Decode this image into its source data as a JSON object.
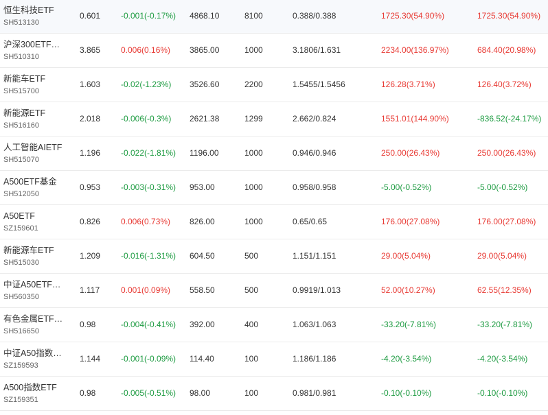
{
  "colors": {
    "up": "#e83a34",
    "down": "#1d9b41",
    "text": "#333333",
    "code": "#666666"
  },
  "rows": [
    {
      "name": "恒生科技ETF",
      "code": "SH513130",
      "price": "0.601",
      "change": "-0.001(-0.17%)",
      "change_dir": "down",
      "market_value": "4868.10",
      "quantity": "8100",
      "cost": "0.388/0.388",
      "pnl": "1725.30(54.90%)",
      "pnl_dir": "up",
      "pnl2": "1725.30(54.90%)",
      "pnl2_dir": "up"
    },
    {
      "name": "沪深300ETF…",
      "code": "SH510310",
      "price": "3.865",
      "change": "0.006(0.16%)",
      "change_dir": "up",
      "market_value": "3865.00",
      "quantity": "1000",
      "cost": "3.1806/1.631",
      "pnl": "2234.00(136.97%)",
      "pnl_dir": "up",
      "pnl2": "684.40(20.98%)",
      "pnl2_dir": "up"
    },
    {
      "name": "新能车ETF",
      "code": "SH515700",
      "price": "1.603",
      "change": "-0.02(-1.23%)",
      "change_dir": "down",
      "market_value": "3526.60",
      "quantity": "2200",
      "cost": "1.5455/1.5456",
      "pnl": "126.28(3.71%)",
      "pnl_dir": "up",
      "pnl2": "126.40(3.72%)",
      "pnl2_dir": "up"
    },
    {
      "name": "新能源ETF",
      "code": "SH516160",
      "price": "2.018",
      "change": "-0.006(-0.3%)",
      "change_dir": "down",
      "market_value": "2621.38",
      "quantity": "1299",
      "cost": "2.662/0.824",
      "pnl": "1551.01(144.90%)",
      "pnl_dir": "up",
      "pnl2": "-836.52(-24.17%)",
      "pnl2_dir": "down"
    },
    {
      "name": "人工智能AIETF",
      "code": "SH515070",
      "price": "1.196",
      "change": "-0.022(-1.81%)",
      "change_dir": "down",
      "market_value": "1196.00",
      "quantity": "1000",
      "cost": "0.946/0.946",
      "pnl": "250.00(26.43%)",
      "pnl_dir": "up",
      "pnl2": "250.00(26.43%)",
      "pnl2_dir": "up"
    },
    {
      "name": "A500ETF基金",
      "code": "SH512050",
      "price": "0.953",
      "change": "-0.003(-0.31%)",
      "change_dir": "down",
      "market_value": "953.00",
      "quantity": "1000",
      "cost": "0.958/0.958",
      "pnl": "-5.00(-0.52%)",
      "pnl_dir": "down",
      "pnl2": "-5.00(-0.52%)",
      "pnl2_dir": "down"
    },
    {
      "name": "A50ETF",
      "code": "SZ159601",
      "price": "0.826",
      "change": "0.006(0.73%)",
      "change_dir": "up",
      "market_value": "826.00",
      "quantity": "1000",
      "cost": "0.65/0.65",
      "pnl": "176.00(27.08%)",
      "pnl_dir": "up",
      "pnl2": "176.00(27.08%)",
      "pnl2_dir": "up"
    },
    {
      "name": "新能源车ETF",
      "code": "SH515030",
      "price": "1.209",
      "change": "-0.016(-1.31%)",
      "change_dir": "down",
      "market_value": "604.50",
      "quantity": "500",
      "cost": "1.151/1.151",
      "pnl": "29.00(5.04%)",
      "pnl_dir": "up",
      "pnl2": "29.00(5.04%)",
      "pnl2_dir": "up"
    },
    {
      "name": "中证A50ETF…",
      "code": "SH560350",
      "price": "1.117",
      "change": "0.001(0.09%)",
      "change_dir": "up",
      "market_value": "558.50",
      "quantity": "500",
      "cost": "0.9919/1.013",
      "pnl": "52.00(10.27%)",
      "pnl_dir": "up",
      "pnl2": "62.55(12.35%)",
      "pnl2_dir": "up"
    },
    {
      "name": "有色金属ETF…",
      "code": "SH516650",
      "price": "0.98",
      "change": "-0.004(-0.41%)",
      "change_dir": "down",
      "market_value": "392.00",
      "quantity": "400",
      "cost": "1.063/1.063",
      "pnl": "-33.20(-7.81%)",
      "pnl_dir": "down",
      "pnl2": "-33.20(-7.81%)",
      "pnl2_dir": "down"
    },
    {
      "name": "中证A50指数…",
      "code": "SZ159593",
      "price": "1.144",
      "change": "-0.001(-0.09%)",
      "change_dir": "down",
      "market_value": "114.40",
      "quantity": "100",
      "cost": "1.186/1.186",
      "pnl": "-4.20(-3.54%)",
      "pnl_dir": "down",
      "pnl2": "-4.20(-3.54%)",
      "pnl2_dir": "down"
    },
    {
      "name": "A500指数ETF",
      "code": "SZ159351",
      "price": "0.98",
      "change": "-0.005(-0.51%)",
      "change_dir": "down",
      "market_value": "98.00",
      "quantity": "100",
      "cost": "0.981/0.981",
      "pnl": "-0.10(-0.10%)",
      "pnl_dir": "down",
      "pnl2": "-0.10(-0.10%)",
      "pnl2_dir": "down"
    }
  ]
}
